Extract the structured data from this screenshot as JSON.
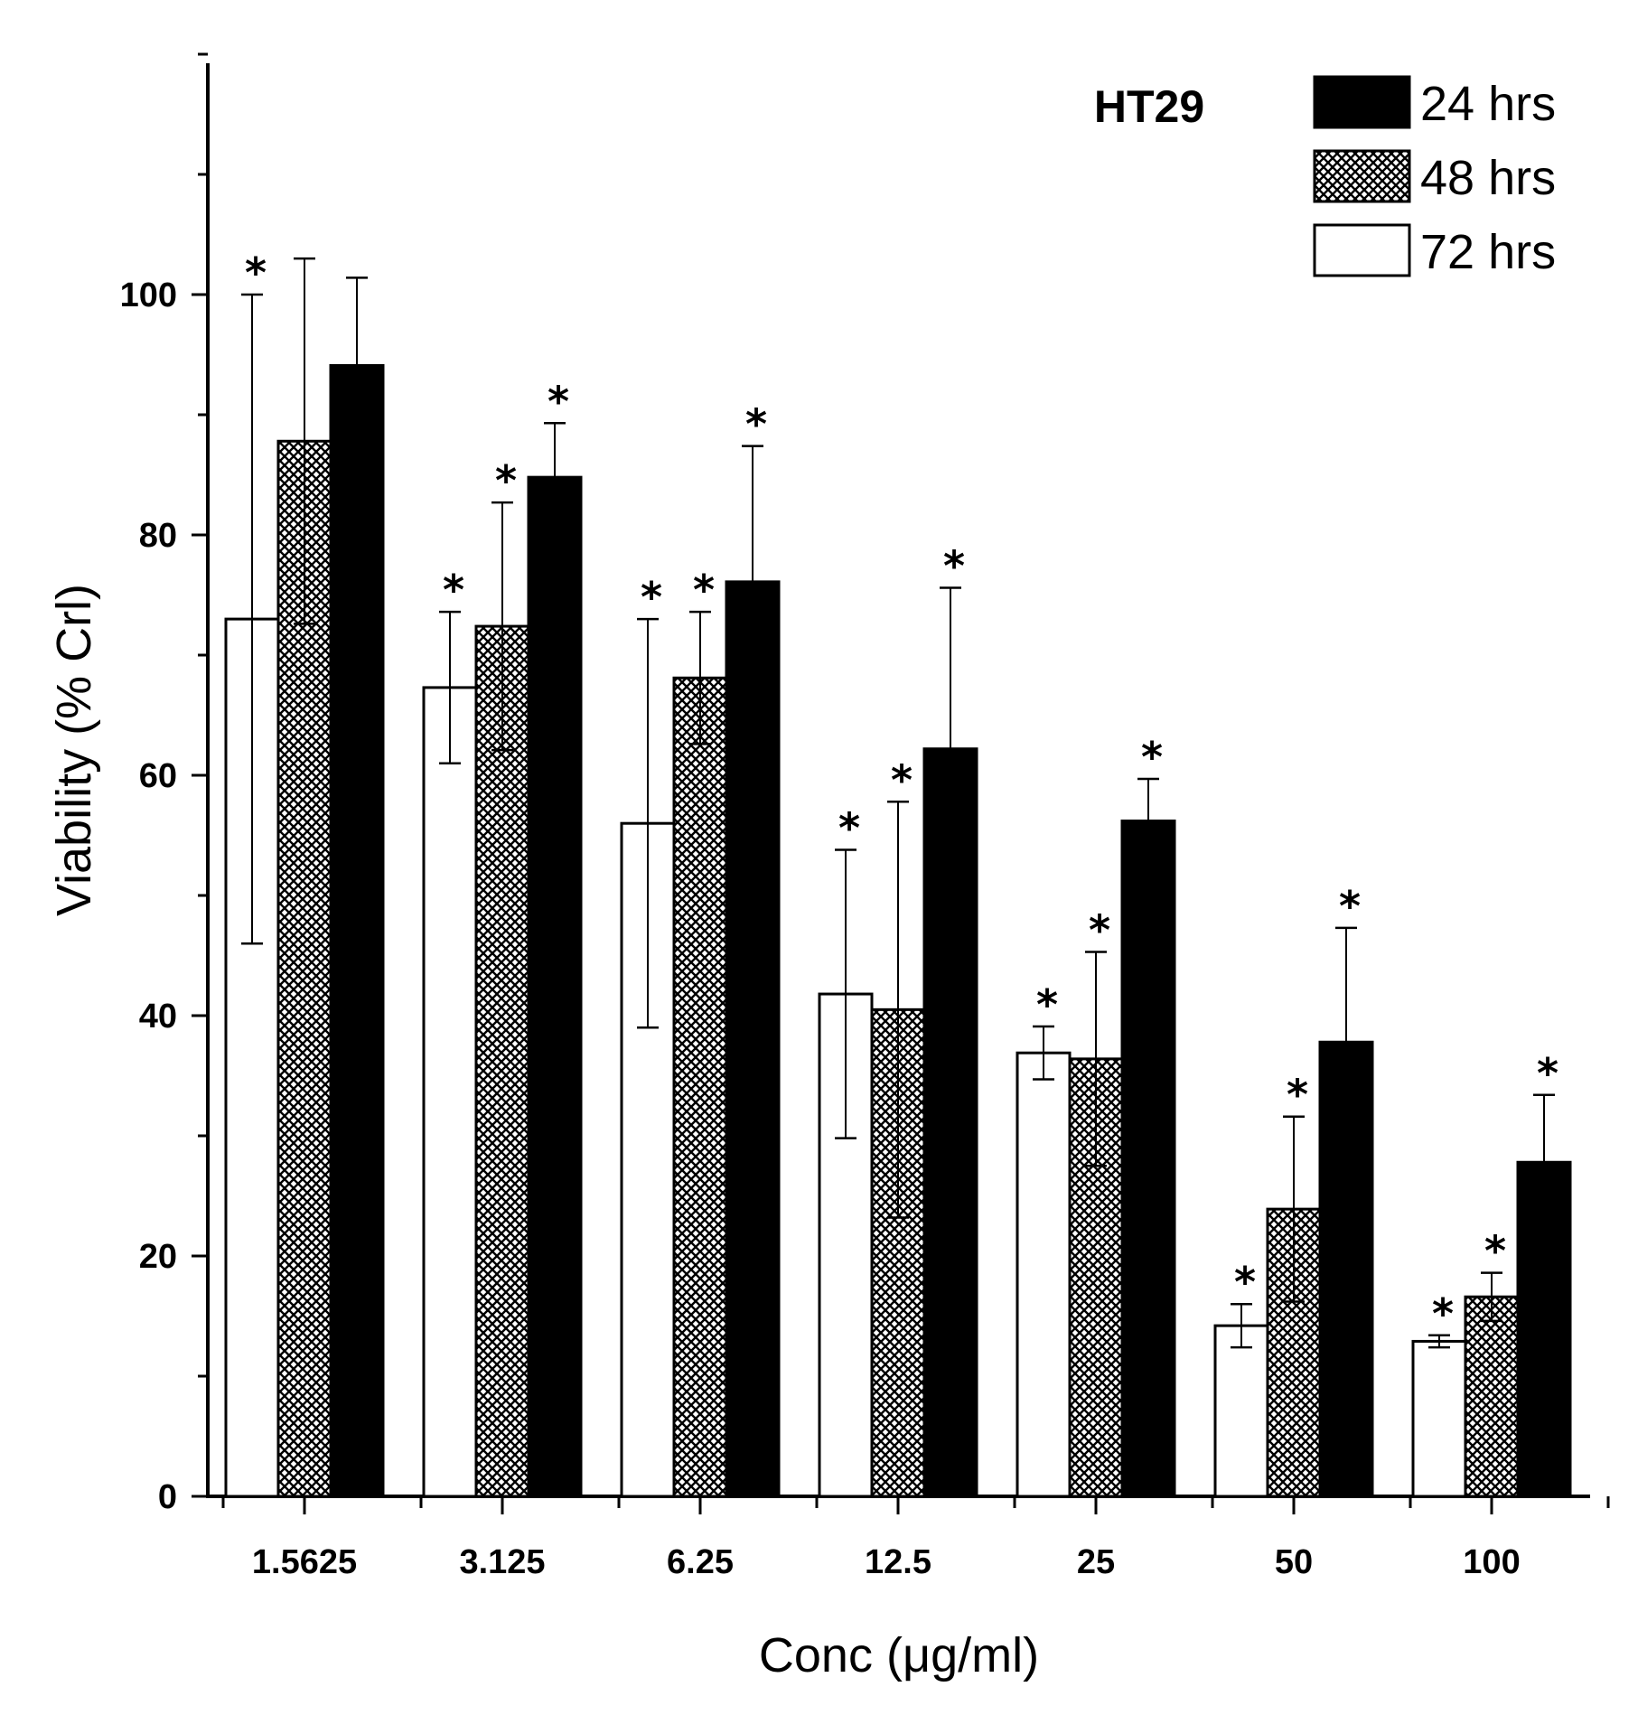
{
  "chart_data": {
    "type": "bar",
    "title": "HT29",
    "xlabel": "Conc (μg/ml)",
    "ylabel": "Viability (% Crl)",
    "ylim": [
      0,
      120
    ],
    "yticks": [
      0,
      20,
      40,
      60,
      80,
      100
    ],
    "grid": false,
    "legend_position": "top-right",
    "categories": [
      "1.5625",
      "3.125",
      "6.25",
      "12.5",
      "25",
      "50",
      "100"
    ],
    "significance_marker": "*",
    "series": [
      {
        "name": "72 hrs",
        "pattern": "white",
        "values": [
          73,
          67.3,
          56,
          41.8,
          36.9,
          14.2,
          12.9
        ],
        "error": [
          27,
          6.3,
          17,
          12,
          2.2,
          1.8,
          0.5
        ],
        "significant": [
          true,
          true,
          true,
          true,
          true,
          true,
          true
        ]
      },
      {
        "name": "48 hrs",
        "pattern": "crosshatch",
        "values": [
          87.8,
          72.4,
          68.1,
          40.5,
          36.4,
          23.9,
          16.6
        ],
        "error": [
          15.2,
          10.3,
          5.5,
          17.3,
          8.9,
          7.7,
          2.0
        ],
        "significant": [
          false,
          true,
          true,
          true,
          true,
          true,
          true
        ]
      },
      {
        "name": "24 hrs",
        "pattern": "black",
        "values": [
          94.1,
          84.8,
          76.1,
          62.2,
          56.2,
          37.8,
          27.8
        ],
        "error": [
          7.3,
          4.5,
          11.3,
          13.4,
          3.5,
          9.5,
          5.6
        ],
        "significant": [
          false,
          true,
          true,
          true,
          true,
          true,
          true
        ]
      }
    ]
  }
}
